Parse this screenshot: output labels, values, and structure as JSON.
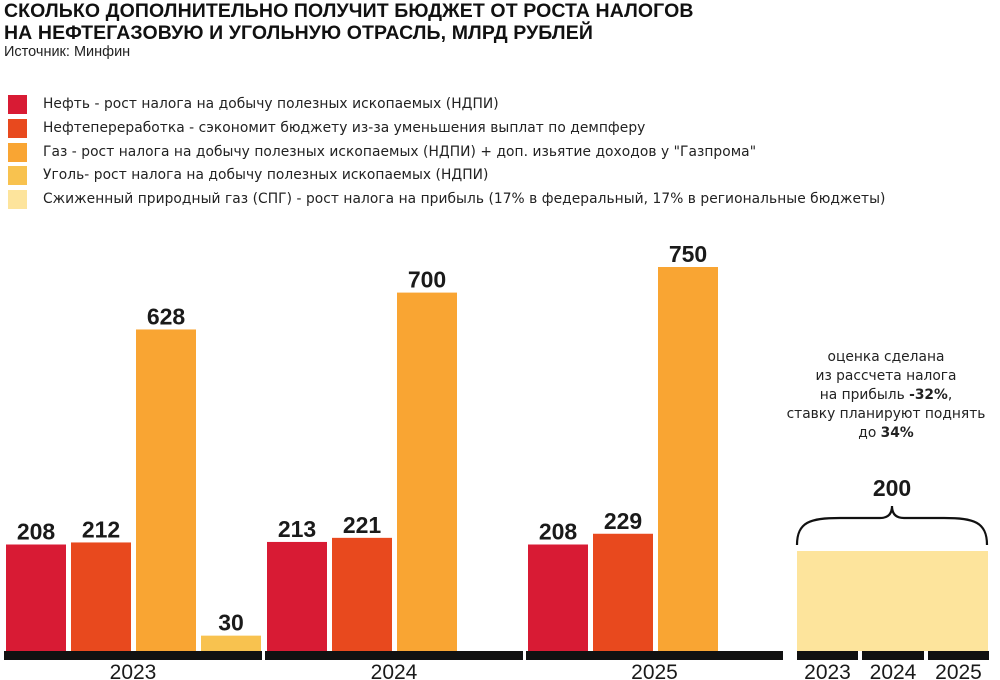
{
  "title_lines": [
    "СКОЛЬКО ДОПОЛНИТЕЛЬНО ПОЛУЧИТ БЮДЖЕТ ОТ РОСТА НАЛОГОВ",
    "НА НЕФТЕГАЗОВУЮ И УГОЛЬНУЮ ОТРАСЛЬ, МЛРД РУБЛЕЙ"
  ],
  "source": "Источник: Минфин",
  "colors": {
    "neft": "#d81b34",
    "pererabotka": "#e8491e",
    "gaz": "#f9a533",
    "ugol": "#f8c24f",
    "spg": "#fde49c",
    "axis": "#111111"
  },
  "legend": [
    {
      "key": "neft",
      "label": "Нефть - рост налога на добычу полезных ископаемых (НДПИ)"
    },
    {
      "key": "pererabotka",
      "label": "Нефтепереработка - сэкономит бюджету из-за уменьшения выплат по демпферу"
    },
    {
      "key": "gaz",
      "label": "Газ - рост налога на добычу полезных ископаемых (НДПИ) + доп. изьятие доходов у \"Газпрома\""
    },
    {
      "key": "ugol",
      "label": "Уголь- рост налога на добычу полезных ископаемых (НДПИ)"
    },
    {
      "key": "spg",
      "label": "Сжиженный природный газ (СПГ) - рост налога на прибыль (17% в федеральный, 17% в региональные бюджеты)"
    }
  ],
  "note": {
    "line1": "оценка сделана",
    "line2": "из рассчета налога",
    "line3_pre": "на прибыль ",
    "line3_bold": "-32%",
    "line3_post": ",",
    "line4": "ставку планируют поднять",
    "line5_pre": "до ",
    "line5_bold": "34%"
  },
  "chart_data": {
    "type": "bar",
    "categories": [
      "2023",
      "2024",
      "2025"
    ],
    "series": [
      {
        "name": "Нефть",
        "key": "neft",
        "values": [
          208,
          213,
          208
        ]
      },
      {
        "name": "Нефтепереработка",
        "key": "pererabotka",
        "values": [
          212,
          221,
          229
        ]
      },
      {
        "name": "Газ",
        "key": "gaz",
        "values": [
          628,
          700,
          750
        ]
      },
      {
        "name": "Уголь",
        "key": "ugol",
        "values": [
          30,
          null,
          null
        ]
      }
    ],
    "spg": {
      "key": "spg",
      "categories": [
        "2023",
        "2024",
        "2025"
      ],
      "value": 200,
      "value_label": "200"
    },
    "ylim": [
      0,
      750
    ],
    "grid": false,
    "legend_position": "top"
  }
}
